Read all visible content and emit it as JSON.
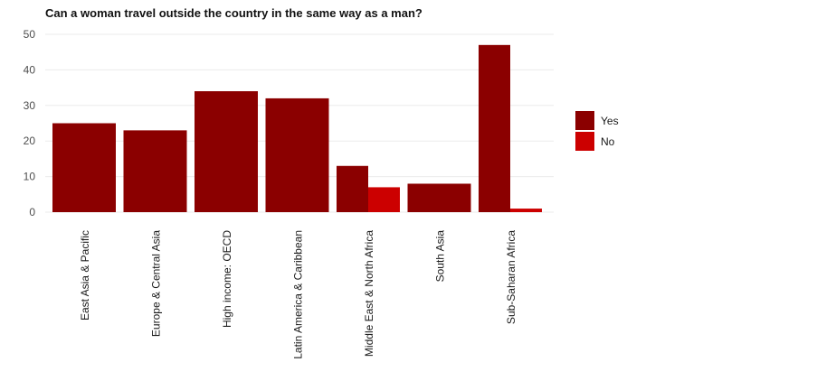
{
  "chart_data": {
    "type": "bar",
    "title": "Can a woman travel outside the country in the same way as a man?",
    "xlabel": "",
    "ylabel": "",
    "categories": [
      "East Asia & Pacific",
      "Europe & Central Asia",
      "High income: OECD",
      "Latin America & Caribbean",
      "Middle East & North Africa",
      "South Asia",
      "Sub-Saharan Africa"
    ],
    "series": [
      {
        "name": "Yes",
        "color": "#8b0000",
        "values": [
          25,
          23,
          34,
          32,
          13,
          8,
          47
        ]
      },
      {
        "name": "No",
        "color": "#cc0000",
        "values": [
          0,
          0,
          0,
          0,
          7,
          0,
          1
        ]
      }
    ],
    "ylim": [
      0,
      50
    ],
    "yticks": [
      0,
      10,
      20,
      30,
      40,
      50
    ],
    "grid": true,
    "legend": "right"
  }
}
